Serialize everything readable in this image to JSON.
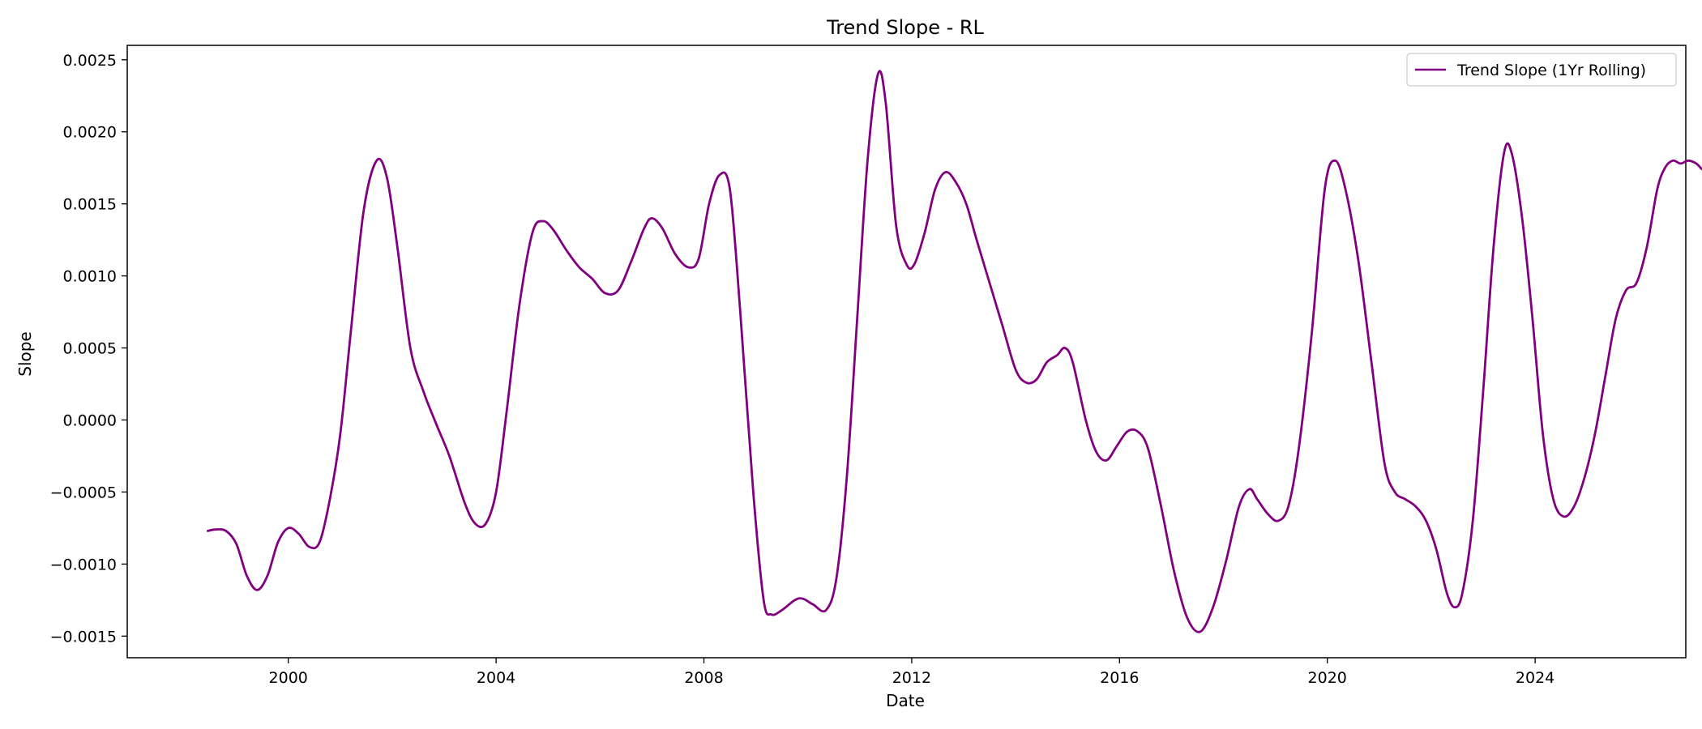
{
  "chart_data": {
    "type": "line",
    "title": "Trend Slope - RL",
    "xlabel": "Date",
    "ylabel": "Slope",
    "xlim": [
      1996.9,
      2026.9
    ],
    "ylim": [
      -0.00165,
      0.0026
    ],
    "x_ticks": [
      2000,
      2004,
      2008,
      2012,
      2016,
      2020,
      2024
    ],
    "x_tick_labels": [
      "2000",
      "2004",
      "2008",
      "2012",
      "2016",
      "2020",
      "2024"
    ],
    "y_ticks": [
      -0.0015,
      -0.001,
      -0.0005,
      0.0,
      0.0005,
      0.001,
      0.0015,
      0.002,
      0.0025
    ],
    "y_tick_labels": [
      "−0.0015",
      "−0.0010",
      "−0.0005",
      "0.0000",
      "0.0005",
      "0.0010",
      "0.0015",
      "0.0020",
      "0.0025"
    ],
    "grid": false,
    "legend_position": "top-right",
    "series": [
      {
        "name": "Trend Slope (1Yr Rolling)",
        "color": "#800080",
        "points": [
          [
            1998.45,
            -0.00077
          ],
          [
            1998.6,
            -0.00076
          ],
          [
            1998.8,
            -0.00077
          ],
          [
            1999.0,
            -0.00086
          ],
          [
            1999.2,
            -0.00108
          ],
          [
            1999.4,
            -0.00118
          ],
          [
            1999.6,
            -0.00108
          ],
          [
            1999.8,
            -0.00085
          ],
          [
            2000.0,
            -0.00075
          ],
          [
            2000.2,
            -0.00079
          ],
          [
            2000.4,
            -0.00088
          ],
          [
            2000.6,
            -0.00085
          ],
          [
            2000.8,
            -0.00055
          ],
          [
            2001.0,
            -0.0001
          ],
          [
            2001.2,
            0.0006
          ],
          [
            2001.45,
            0.00145
          ],
          [
            2001.7,
            0.0018
          ],
          [
            2001.9,
            0.00168
          ],
          [
            2002.1,
            0.0012
          ],
          [
            2002.35,
            0.0005
          ],
          [
            2002.6,
            0.0002
          ],
          [
            2002.85,
            -3e-05
          ],
          [
            2003.1,
            -0.00025
          ],
          [
            2003.4,
            -0.00058
          ],
          [
            2003.6,
            -0.00072
          ],
          [
            2003.8,
            -0.00072
          ],
          [
            2004.0,
            -0.0005
          ],
          [
            2004.2,
            5e-05
          ],
          [
            2004.45,
            0.0008
          ],
          [
            2004.7,
            0.0013
          ],
          [
            2004.9,
            0.00138
          ],
          [
            2005.1,
            0.00132
          ],
          [
            2005.35,
            0.00118
          ],
          [
            2005.6,
            0.00106
          ],
          [
            2005.85,
            0.00098
          ],
          [
            2006.1,
            0.00088
          ],
          [
            2006.35,
            0.0009
          ],
          [
            2006.6,
            0.0011
          ],
          [
            2006.85,
            0.00133
          ],
          [
            2007.0,
            0.0014
          ],
          [
            2007.2,
            0.00133
          ],
          [
            2007.45,
            0.00115
          ],
          [
            2007.7,
            0.00106
          ],
          [
            2007.9,
            0.00112
          ],
          [
            2008.1,
            0.0015
          ],
          [
            2008.3,
            0.0017
          ],
          [
            2008.5,
            0.0016
          ],
          [
            2008.7,
            0.00075
          ],
          [
            2008.95,
            -0.0005
          ],
          [
            2009.15,
            -0.00125
          ],
          [
            2009.3,
            -0.00135
          ],
          [
            2009.5,
            -0.00132
          ],
          [
            2009.75,
            -0.00125
          ],
          [
            2009.9,
            -0.00124
          ],
          [
            2010.1,
            -0.00128
          ],
          [
            2010.35,
            -0.00132
          ],
          [
            2010.55,
            -0.0011
          ],
          [
            2010.75,
            -0.0004
          ],
          [
            2010.95,
            0.0007
          ],
          [
            2011.15,
            0.0018
          ],
          [
            2011.35,
            0.0024
          ],
          [
            2011.5,
            0.0022
          ],
          [
            2011.7,
            0.00135
          ],
          [
            2011.9,
            0.00108
          ],
          [
            2012.05,
            0.00108
          ],
          [
            2012.25,
            0.0013
          ],
          [
            2012.45,
            0.0016
          ],
          [
            2012.65,
            0.00172
          ],
          [
            2012.85,
            0.00165
          ],
          [
            2013.05,
            0.0015
          ],
          [
            2013.25,
            0.00125
          ],
          [
            2013.5,
            0.00095
          ],
          [
            2013.75,
            0.00065
          ],
          [
            2014.0,
            0.00035
          ],
          [
            2014.2,
            0.00026
          ],
          [
            2014.4,
            0.00028
          ],
          [
            2014.6,
            0.0004
          ],
          [
            2014.8,
            0.00045
          ],
          [
            2014.95,
            0.0005
          ],
          [
            2015.1,
            0.0004
          ],
          [
            2015.35,
            0.0
          ],
          [
            2015.55,
            -0.00022
          ],
          [
            2015.75,
            -0.00028
          ],
          [
            2015.95,
            -0.00018
          ],
          [
            2016.15,
            -8e-05
          ],
          [
            2016.35,
            -8e-05
          ],
          [
            2016.55,
            -0.0002
          ],
          [
            2016.8,
            -0.0006
          ],
          [
            2017.05,
            -0.00105
          ],
          [
            2017.3,
            -0.00137
          ],
          [
            2017.55,
            -0.00147
          ],
          [
            2017.8,
            -0.0013
          ],
          [
            2018.05,
            -0.00098
          ],
          [
            2018.3,
            -0.0006
          ],
          [
            2018.5,
            -0.00048
          ],
          [
            2018.65,
            -0.00055
          ],
          [
            2018.85,
            -0.00065
          ],
          [
            2019.05,
            -0.0007
          ],
          [
            2019.25,
            -0.0006
          ],
          [
            2019.45,
            -0.0002
          ],
          [
            2019.7,
            0.0006
          ],
          [
            2019.95,
            0.0016
          ],
          [
            2020.15,
            0.0018
          ],
          [
            2020.35,
            0.0016
          ],
          [
            2020.6,
            0.0011
          ],
          [
            2020.85,
            0.0004
          ],
          [
            2021.1,
            -0.0003
          ],
          [
            2021.3,
            -0.0005
          ],
          [
            2021.5,
            -0.00055
          ],
          [
            2021.7,
            -0.0006
          ],
          [
            2021.9,
            -0.0007
          ],
          [
            2022.1,
            -0.0009
          ],
          [
            2022.3,
            -0.0012
          ],
          [
            2022.45,
            -0.0013
          ],
          [
            2022.6,
            -0.0012
          ],
          [
            2022.8,
            -0.0007
          ],
          [
            2023.0,
            0.0002
          ],
          [
            2023.2,
            0.0012
          ],
          [
            2023.4,
            0.00185
          ],
          [
            2023.55,
            0.00185
          ],
          [
            2023.75,
            0.0014
          ],
          [
            2023.95,
            0.0007
          ],
          [
            2024.15,
            -0.0001
          ],
          [
            2024.35,
            -0.00055
          ],
          [
            2024.55,
            -0.00067
          ],
          [
            2024.75,
            -0.0006
          ],
          [
            2024.95,
            -0.0004
          ],
          [
            2025.15,
            -0.0001
          ],
          [
            2025.35,
            0.0003
          ],
          [
            2025.55,
            0.0007
          ],
          [
            2025.75,
            0.0009
          ],
          [
            2025.95,
            0.00095
          ],
          [
            2026.15,
            0.0012
          ],
          [
            2026.35,
            0.0016
          ],
          [
            2026.5,
            0.00175
          ],
          [
            2026.65,
            0.0018
          ],
          [
            2026.8,
            0.00178
          ],
          [
            2026.95,
            0.0018
          ],
          [
            2027.1,
            0.00178
          ],
          [
            2027.25,
            0.00173
          ],
          [
            2027.4,
            0.00173
          ]
        ]
      }
    ]
  }
}
